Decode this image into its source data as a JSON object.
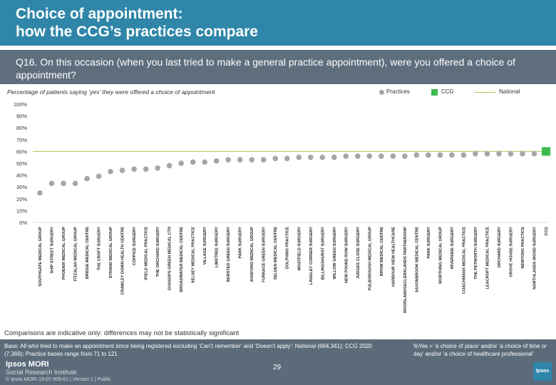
{
  "title": "Choice of appointment:\nhow the CCG’s practices compare",
  "question": "Q16. On this occasion (when you last tried to make a general practice appointment), were you offered a choice of appointment?",
  "subtitle": "Percentage of patients saying ‘yes’ they were offered a choice of appointment",
  "legend": {
    "practices": "Practices",
    "ccg": "CCG",
    "national": "National"
  },
  "colors": {
    "practice": "#a6a6a6",
    "ccg": "#3dbb4e",
    "national": "#a7c957",
    "header": "#2f86a8"
  },
  "note": "Comparisons are indicative only: differences may not be statistically significant",
  "base_text": "Base: All who tried to make an appointment since being registered excluding ‘Can’t remember’ and ‘Doesn’t apply’: National (664,341); CCG 2020 (7,369); Practice bases range from 71 to 121",
  "yes_note": "%Yes = ‘a choice of place’ and/or ‘a choice of time or day’ and/or ‘a choice of healthcare professional’",
  "page_number": "29",
  "logo": {
    "line1": "Ipsos MORI",
    "line2": "Social Research Institute",
    "copyright": "© Ipsos MORI    19-07-009-01 | Version 1 | Public",
    "brand": "Ipsos"
  },
  "chart_data": {
    "type": "scatter",
    "title": "",
    "ylabel": "",
    "ylim": [
      0,
      100
    ],
    "yticks": [
      "0%",
      "10%",
      "20%",
      "30%",
      "40%",
      "50%",
      "60%",
      "70%",
      "80%",
      "90%",
      "100%"
    ],
    "national_value": 60,
    "ccg_value": 60,
    "categories": [
      "SOUTHGATE MEDICAL GROUP",
      "SHIP STREET SURGERY",
      "PHOENIX MEDICAL GROUP",
      "FITZALAN MEDICAL GROUP",
      "BRIDGE MEDICAL CENTRE",
      "THE CROFT SURGERY",
      "STRAND MEDICAL GROUP",
      "CRAWLEY DOWN HEALTH CENTRE",
      "COPPICE SURGERY",
      "IFIELD MEDICAL PRACTICE",
      "THE ORCHARD SURGERY",
      "GOSSOPS GREEN MEDICAL CTR",
      "BROADWATER MEDICAL CENTRE",
      "SELSEY MEDICAL PRACTICE",
      "VILLAGE SURGERY",
      "LIMETREE SURGERY",
      "BERSTED GREEN SURGERY",
      "PARK SURGERY",
      "AVISFORD MEDICAL GROUP",
      "FURNACE GREEN SURGERY",
      "SELDEN MEDICAL CENTRE",
      "DOLPHINS PRACTICE",
      "MOATFIELD SURGERY",
      "LANGLEY CORNER SURGERY",
      "BILLINGSHURST SURGERY",
      "WILLOW GREEN SURGERY",
      "NEW POUND ROW SURGERY",
      "JUDGES CLOSE SURGERY",
      "PULBOROUGH MEDICAL GROUP",
      "BROW MEDICAL CENTRE",
      "HARBOUR VIEW HEALTHCARE",
      "WOODLANDS&CLERKLANDS PARTNERSHIP",
      "SAXONBROOK MEDICAL CENTRE",
      "PARK SURGERY",
      "WORTHING MEDICAL GROUP",
      "RIVERSIDE SURGERY",
      "COACHMANS MEDICAL PRACTICE",
      "THE PETWORTH SURGERY",
      "LEACROFT MEDICAL PRACTICE",
      "ORCHARD SURGERY",
      "GROVE HOUSE SURGERY",
      "NEWTONS PRACTICE",
      "NORTHLANDS WOOD SURGERY",
      "CCG"
    ],
    "values": [
      25,
      33,
      33,
      33,
      37,
      39,
      43,
      44,
      45,
      45,
      46,
      48,
      50,
      51,
      51,
      52,
      53,
      53,
      53,
      53,
      54,
      54,
      55,
      55,
      55,
      55,
      56,
      56,
      56,
      56,
      56,
      56,
      57,
      57,
      57,
      57,
      57,
      58,
      58,
      58,
      58,
      58,
      58,
      60
    ]
  }
}
